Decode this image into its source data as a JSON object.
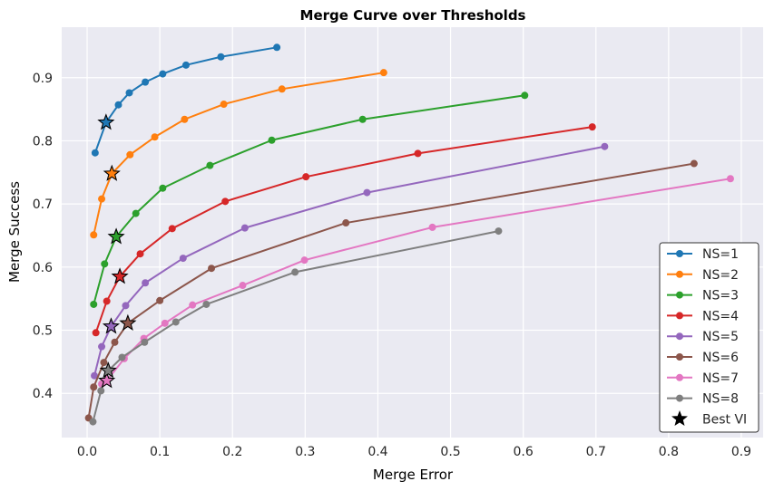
{
  "chart_data": {
    "type": "line",
    "title": "Merge Curve over Thresholds",
    "xlabel": "Merge Error",
    "ylabel": "Merge Success",
    "xlim": [
      -0.035,
      0.93
    ],
    "ylim": [
      0.33,
      0.98
    ],
    "xticks": [
      0.0,
      0.1,
      0.2,
      0.3,
      0.4,
      0.5,
      0.6,
      0.7,
      0.8,
      0.9
    ],
    "xtick_labels": [
      "0.0",
      "0.1",
      "0.2",
      "0.3",
      "0.4",
      "0.5",
      "0.6",
      "0.7",
      "0.8",
      "0.9"
    ],
    "yticks": [
      0.4,
      0.5,
      0.6,
      0.7,
      0.8,
      0.9
    ],
    "ytick_labels": [
      "0.4",
      "0.5",
      "0.6",
      "0.7",
      "0.8",
      "0.9"
    ],
    "grid": true,
    "legend_position": "bottom-right",
    "series": [
      {
        "name": "NS=1",
        "color": "#1f77b4",
        "x": [
          0.011,
          0.026,
          0.043,
          0.058,
          0.08,
          0.104,
          0.136,
          0.184,
          0.261
        ],
        "y": [
          0.781,
          0.829,
          0.857,
          0.876,
          0.893,
          0.906,
          0.92,
          0.933,
          0.948
        ]
      },
      {
        "name": "NS=2",
        "color": "#ff7f0e",
        "x": [
          0.009,
          0.02,
          0.034,
          0.059,
          0.093,
          0.134,
          0.188,
          0.268,
          0.408
        ],
        "y": [
          0.651,
          0.708,
          0.748,
          0.778,
          0.806,
          0.834,
          0.858,
          0.882,
          0.908
        ]
      },
      {
        "name": "NS=3",
        "color": "#2ca02c",
        "x": [
          0.009,
          0.024,
          0.04,
          0.067,
          0.104,
          0.169,
          0.254,
          0.379,
          0.602
        ],
        "y": [
          0.541,
          0.605,
          0.648,
          0.685,
          0.725,
          0.761,
          0.801,
          0.834,
          0.872
        ]
      },
      {
        "name": "NS=4",
        "color": "#d62728",
        "x": [
          0.012,
          0.027,
          0.045,
          0.073,
          0.117,
          0.19,
          0.301,
          0.455,
          0.695
        ],
        "y": [
          0.496,
          0.546,
          0.585,
          0.621,
          0.661,
          0.704,
          0.743,
          0.78,
          0.822
        ]
      },
      {
        "name": "NS=5",
        "color": "#9467bd",
        "x": [
          0.01,
          0.02,
          0.033,
          0.053,
          0.08,
          0.132,
          0.217,
          0.385,
          0.712
        ],
        "y": [
          0.428,
          0.474,
          0.506,
          0.539,
          0.575,
          0.614,
          0.662,
          0.718,
          0.791
        ]
      },
      {
        "name": "NS=6",
        "color": "#8c564b",
        "x": [
          0.002,
          0.009,
          0.023,
          0.038,
          0.056,
          0.1,
          0.171,
          0.356,
          0.835
        ],
        "y": [
          0.361,
          0.41,
          0.449,
          0.481,
          0.511,
          0.547,
          0.598,
          0.67,
          0.764
        ]
      },
      {
        "name": "NS=7",
        "color": "#e377c2",
        "x": [
          0.02,
          0.027,
          0.051,
          0.078,
          0.107,
          0.145,
          0.214,
          0.299,
          0.475,
          0.885
        ],
        "y": [
          0.415,
          0.42,
          0.455,
          0.487,
          0.511,
          0.54,
          0.571,
          0.611,
          0.663,
          0.74
        ]
      },
      {
        "name": "NS=8",
        "color": "#7f7f7f",
        "x": [
          0.008,
          0.019,
          0.029,
          0.048,
          0.079,
          0.122,
          0.164,
          0.286,
          0.566
        ],
        "y": [
          0.355,
          0.404,
          0.436,
          0.457,
          0.481,
          0.513,
          0.541,
          0.592,
          0.657
        ]
      }
    ],
    "best_vi": {
      "name": "Best VI",
      "points": [
        {
          "series": "NS=1",
          "x": 0.026,
          "y": 0.829
        },
        {
          "series": "NS=2",
          "x": 0.034,
          "y": 0.748
        },
        {
          "series": "NS=3",
          "x": 0.04,
          "y": 0.648
        },
        {
          "series": "NS=4",
          "x": 0.045,
          "y": 0.585
        },
        {
          "series": "NS=5",
          "x": 0.033,
          "y": 0.506
        },
        {
          "series": "NS=6",
          "x": 0.056,
          "y": 0.511
        },
        {
          "series": "NS=7",
          "x": 0.027,
          "y": 0.42
        },
        {
          "series": "NS=8",
          "x": 0.029,
          "y": 0.436
        }
      ]
    }
  }
}
